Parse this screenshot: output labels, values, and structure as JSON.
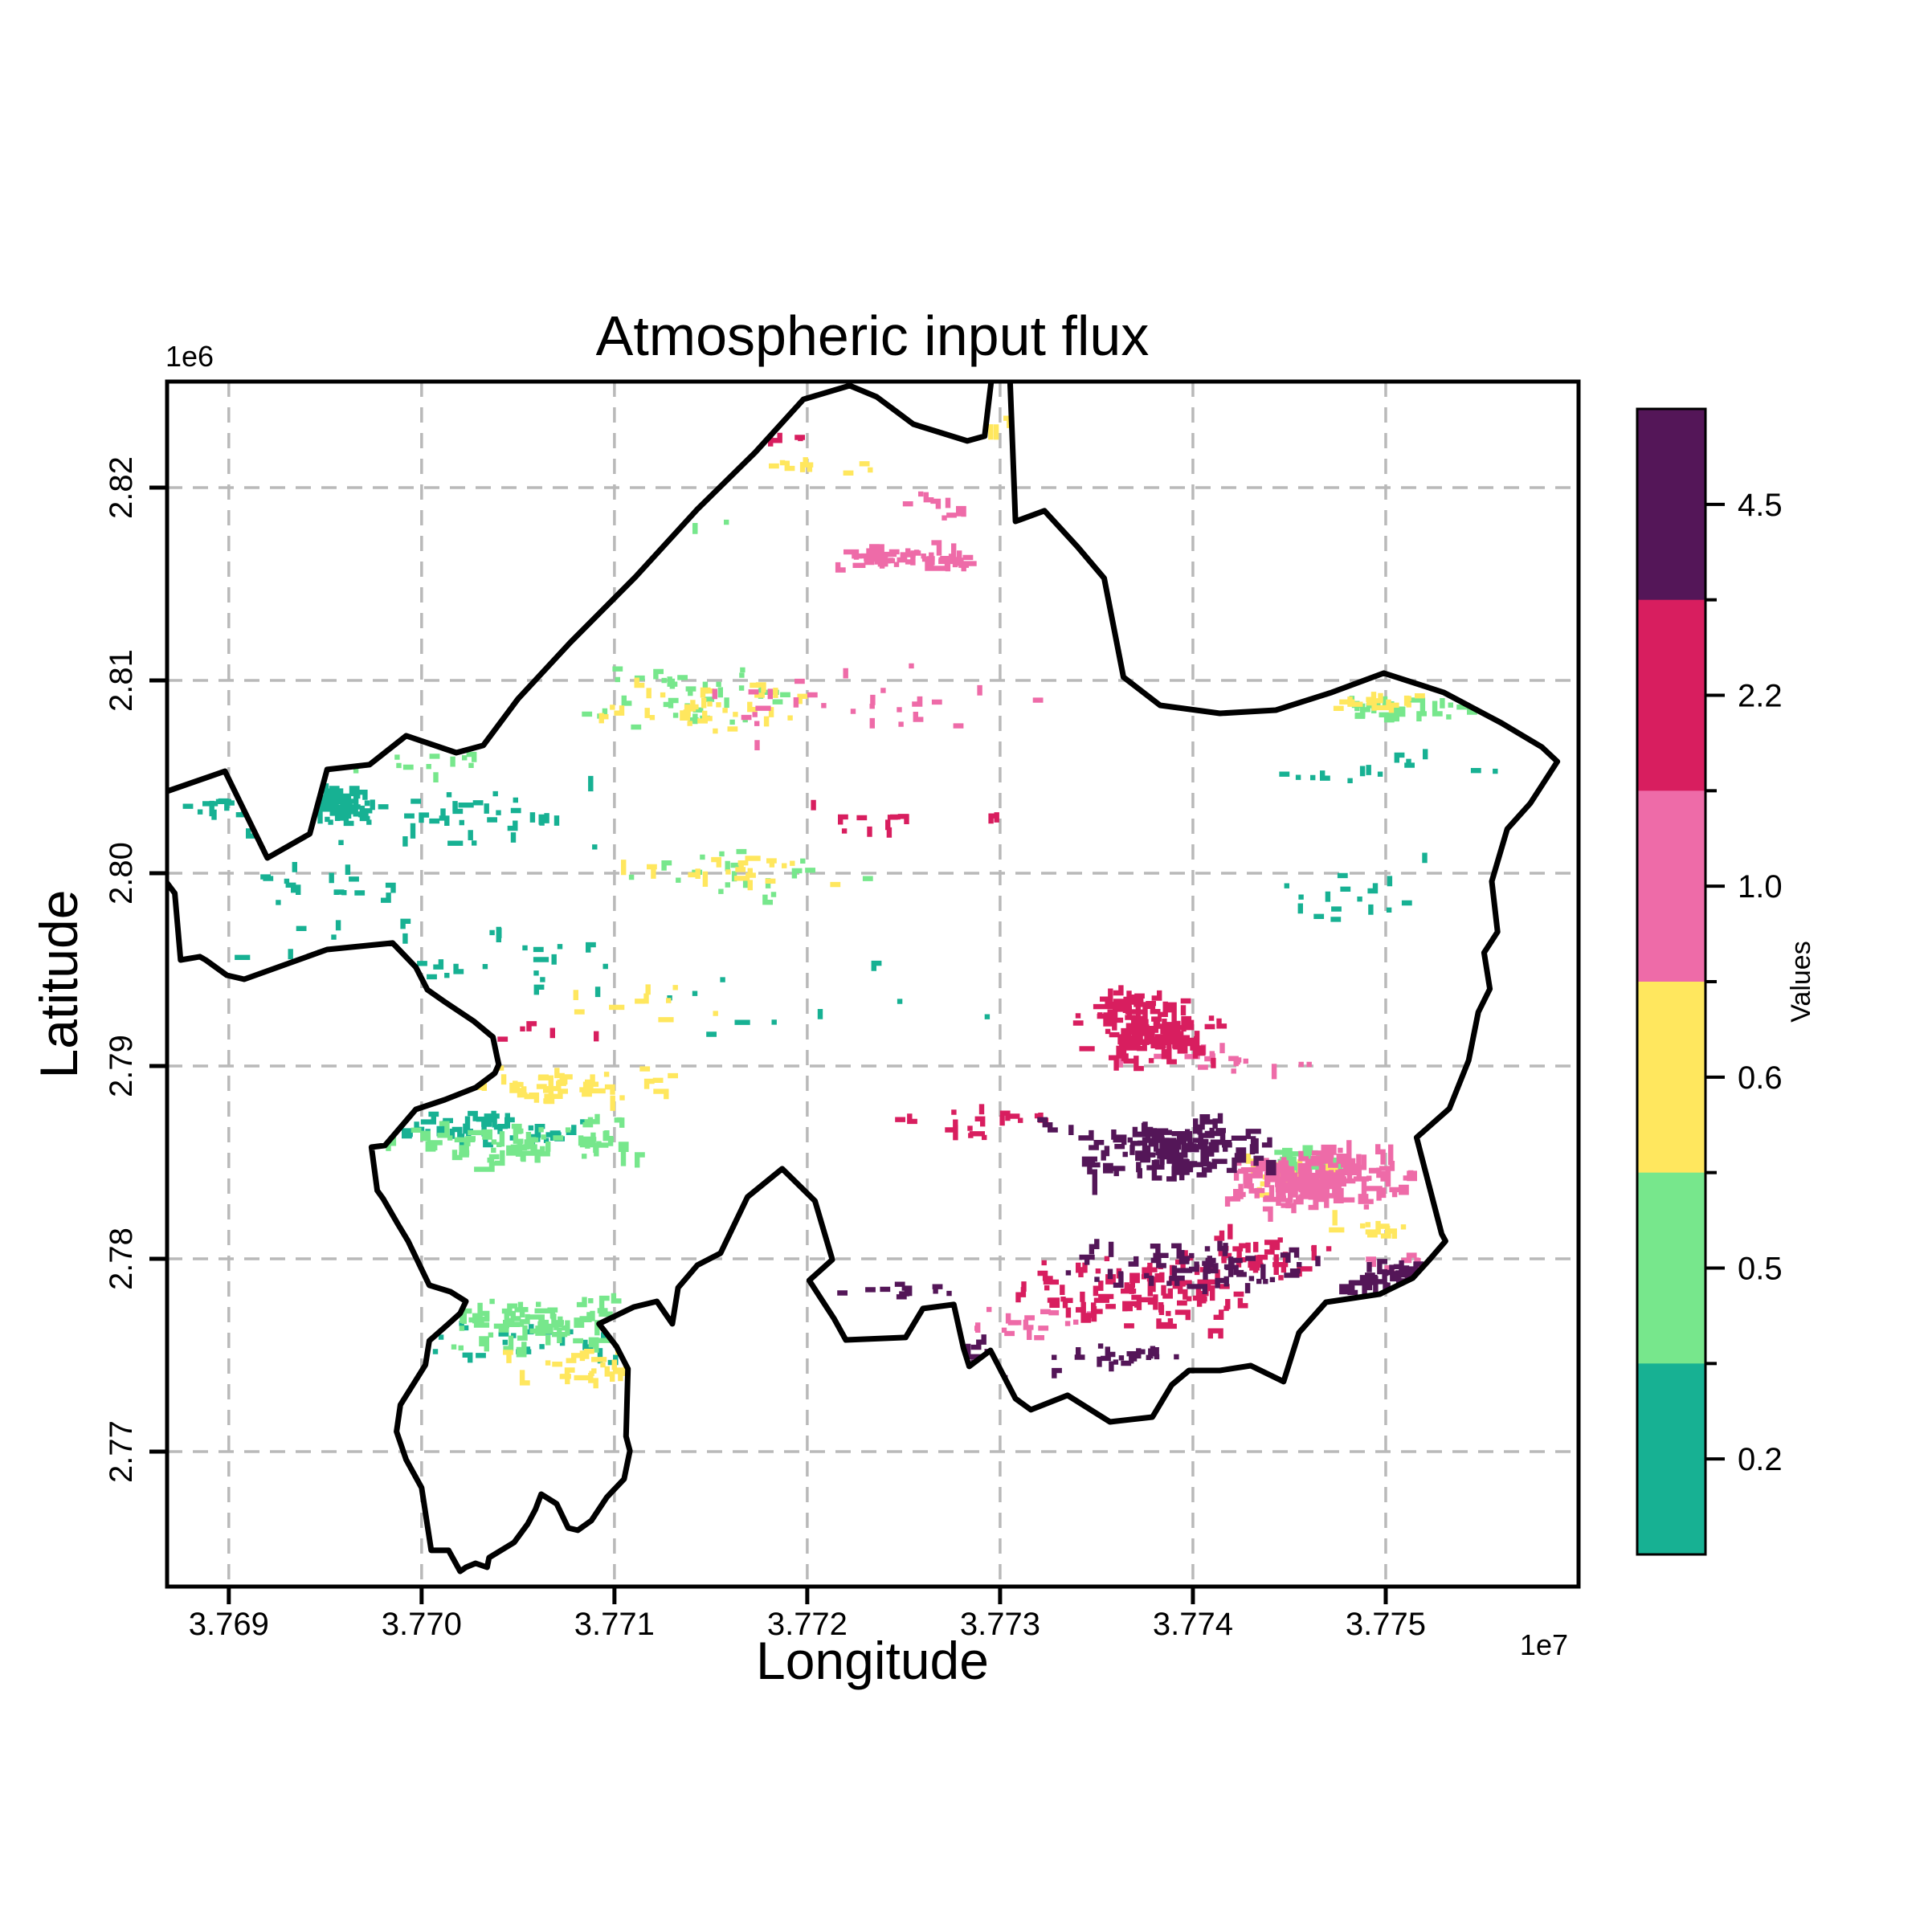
{
  "title": "Atmospheric input flux",
  "axes": {
    "xlabel": "Longitude",
    "ylabel": "Latitude",
    "x_offset_text": "1e7",
    "y_offset_text": "1e6",
    "x_tick_labels": [
      "3.769",
      "3.770",
      "3.771",
      "3.772",
      "3.773",
      "3.774",
      "3.775"
    ],
    "x_tick_values": [
      3.769,
      3.77,
      3.771,
      3.772,
      3.773,
      3.774,
      3.775
    ],
    "y_tick_labels": [
      "2.82",
      "2.81",
      "2.80",
      "2.79",
      "2.78",
      "2.77"
    ],
    "y_tick_values": [
      2.82,
      2.81,
      2.8,
      2.79,
      2.78,
      2.77
    ]
  },
  "colorbar": {
    "label": "Values",
    "segments_top_to_bottom": [
      {
        "label": "4.5",
        "color": "#541658"
      },
      {
        "label": "2.2",
        "color": "#d81e5f"
      },
      {
        "label": "1.0",
        "color": "#ee6ba8"
      },
      {
        "label": "0.6",
        "color": "#ffe75e"
      },
      {
        "label": "0.5",
        "color": "#77e78c"
      },
      {
        "label": "0.2",
        "color": "#17b193"
      }
    ]
  },
  "chart_data": {
    "type": "heatmap",
    "subtype": "categorical-raster-catchment-map",
    "title": "Atmospheric input flux",
    "xlabel": "Longitude",
    "ylabel": "Latitude",
    "x_range": [
      3.76868,
      3.776
    ],
    "y_range": [
      2.763,
      2.8255
    ],
    "x_scale_factor": "1e7",
    "y_scale_factor": "1e6",
    "grid": true,
    "legend_position": "right-colorbar",
    "value_classes_low_to_high": [
      {
        "value": "0.2",
        "color": "#17b193"
      },
      {
        "value": "0.5",
        "color": "#77e78c"
      },
      {
        "value": "0.6",
        "color": "#ffe75e"
      },
      {
        "value": "1.0",
        "color": "#ee6ba8"
      },
      {
        "value": "2.2",
        "color": "#d81e5f"
      },
      {
        "value": "4.5",
        "color": "#541658"
      }
    ],
    "boundary_polygon": [
      [
        3.76862,
        2.80404
      ],
      [
        3.76898,
        2.80529
      ],
      [
        3.7692,
        2.80079
      ],
      [
        3.76942,
        2.80204
      ],
      [
        3.76951,
        2.80538
      ],
      [
        3.76973,
        2.80563
      ],
      [
        3.76992,
        2.80713
      ],
      [
        3.77018,
        2.80625
      ],
      [
        3.77032,
        2.80663
      ],
      [
        3.7705,
        2.80904
      ],
      [
        3.77077,
        2.81196
      ],
      [
        3.77111,
        2.81538
      ],
      [
        3.77143,
        2.81888
      ],
      [
        3.77173,
        2.82183
      ],
      [
        3.77198,
        2.82458
      ],
      [
        3.77222,
        2.82529
      ],
      [
        3.77236,
        2.82471
      ],
      [
        3.77255,
        2.82329
      ],
      [
        3.77283,
        2.82242
      ],
      [
        3.77292,
        2.82267
      ],
      [
        3.77296,
        2.826
      ],
      [
        3.77305,
        2.826
      ],
      [
        3.77308,
        2.81825
      ],
      [
        3.77323,
        2.8188
      ],
      [
        3.7734,
        2.81695
      ],
      [
        3.77354,
        2.8153
      ],
      [
        3.77364,
        2.81017
      ],
      [
        3.77383,
        2.80871
      ],
      [
        3.77414,
        2.80829
      ],
      [
        3.77443,
        2.80846
      ],
      [
        3.77472,
        2.80938
      ],
      [
        3.77499,
        2.81038
      ],
      [
        3.7753,
        2.80938
      ],
      [
        3.7756,
        2.80779
      ],
      [
        3.77581,
        2.80654
      ],
      [
        3.77589,
        2.80579
      ],
      [
        3.77575,
        2.80363
      ],
      [
        3.77563,
        2.80229
      ],
      [
        3.77555,
        2.79958
      ],
      [
        3.77558,
        2.79696
      ],
      [
        3.77551,
        2.79588
      ],
      [
        3.77554,
        2.794
      ],
      [
        3.77548,
        2.79279
      ],
      [
        3.77543,
        2.79029
      ],
      [
        3.77533,
        2.78779
      ],
      [
        3.77516,
        2.78629
      ],
      [
        3.77529,
        2.78129
      ],
      [
        3.77531,
        2.78092
      ],
      [
        3.77522,
        2.77988
      ],
      [
        3.77514,
        2.779
      ],
      [
        3.77497,
        2.77817
      ],
      [
        3.77469,
        2.77775
      ],
      [
        3.77455,
        2.77617
      ],
      [
        3.77447,
        2.77363
      ],
      [
        3.7743,
        2.77446
      ],
      [
        3.77414,
        2.77421
      ],
      [
        3.77398,
        2.77421
      ],
      [
        3.77389,
        2.77346
      ],
      [
        3.77379,
        2.77179
      ],
      [
        3.77357,
        2.77154
      ],
      [
        3.77335,
        2.77292
      ],
      [
        3.77316,
        2.77217
      ],
      [
        3.77308,
        2.77275
      ],
      [
        3.77295,
        2.77525
      ],
      [
        3.77284,
        2.77442
      ],
      [
        3.77281,
        2.77538
      ],
      [
        3.77276,
        2.77763
      ],
      [
        3.7726,
        2.77742
      ],
      [
        3.77251,
        2.77592
      ],
      [
        3.7722,
        2.77579
      ],
      [
        3.77214,
        2.77688
      ],
      [
        3.77201,
        2.77888
      ],
      [
        3.77213,
        2.77996
      ],
      [
        3.77204,
        2.783
      ],
      [
        3.77187,
        2.78467
      ],
      [
        3.77169,
        2.78321
      ],
      [
        3.77155,
        2.78029
      ],
      [
        3.77143,
        2.77967
      ],
      [
        3.77133,
        2.7785
      ],
      [
        3.7713,
        2.77663
      ],
      [
        3.77122,
        2.77779
      ],
      [
        3.7711,
        2.7775
      ],
      [
        3.77092,
        2.77663
      ],
      [
        3.77101,
        2.77546
      ],
      [
        3.77107,
        2.77429
      ],
      [
        3.77106,
        2.77079
      ],
      [
        3.77108,
        2.77004
      ],
      [
        3.77105,
        2.76858
      ],
      [
        3.77096,
        2.76763
      ],
      [
        3.77088,
        2.76642
      ],
      [
        3.77081,
        2.76592
      ],
      [
        3.77076,
        2.76604
      ],
      [
        3.7707,
        2.76729
      ],
      [
        3.77062,
        2.76779
      ],
      [
        3.77059,
        2.767
      ],
      [
        3.77055,
        2.76625
      ],
      [
        3.77048,
        2.76529
      ],
      [
        3.77035,
        2.7645
      ],
      [
        3.77034,
        2.764
      ],
      [
        3.77028,
        2.76421
      ],
      [
        3.77023,
        2.764
      ],
      [
        3.7702,
        2.76379
      ],
      [
        3.77014,
        2.76488
      ],
      [
        3.77005,
        2.76488
      ],
      [
        3.77,
        2.76813
      ],
      [
        3.76992,
        2.76958
      ],
      [
        3.76987,
        2.77104
      ],
      [
        3.76989,
        2.77242
      ],
      [
        3.77002,
        2.7745
      ],
      [
        3.77004,
        2.77575
      ],
      [
        3.77014,
        2.77663
      ],
      [
        3.7702,
        2.77717
      ],
      [
        3.77023,
        2.77779
      ],
      [
        3.77015,
        2.77829
      ],
      [
        3.77004,
        2.77863
      ],
      [
        3.76993,
        2.78092
      ],
      [
        3.76988,
        2.78175
      ],
      [
        3.7698,
        2.78313
      ],
      [
        3.76977,
        2.78354
      ],
      [
        3.76974,
        2.78579
      ],
      [
        3.76981,
        2.78588
      ],
      [
        3.76997,
        2.78775
      ],
      [
        3.77012,
        2.78825
      ],
      [
        3.77028,
        2.78888
      ],
      [
        3.77038,
        2.78963
      ],
      [
        3.7704,
        2.79008
      ],
      [
        3.77039,
        2.79054
      ],
      [
        3.77037,
        2.7915
      ],
      [
        3.77027,
        2.79233
      ],
      [
        3.77012,
        2.79333
      ],
      [
        3.77003,
        2.79396
      ],
      [
        3.76997,
        2.79513
      ],
      [
        3.76985,
        2.79638
      ],
      [
        3.76951,
        2.79604
      ],
      [
        3.76908,
        2.7945
      ],
      [
        3.76899,
        2.79471
      ],
      [
        3.76888,
        2.7955
      ],
      [
        3.76885,
        2.79567
      ],
      [
        3.76875,
        2.7955
      ],
      [
        3.76872,
        2.79896
      ],
      [
        3.76862,
        2.80029
      ]
    ],
    "raster_clusters": [
      [
        "teal",
        3.76958,
        2.8036,
        0.00022,
        0.001,
        60,
        2
      ],
      [
        "teal",
        3.77015,
        2.803,
        0.0011,
        0.0016,
        40,
        1
      ],
      [
        "teal",
        3.7689,
        2.8037,
        0.00025,
        0.0007,
        12,
        1
      ],
      [
        "teal",
        3.77,
        2.7955,
        0.0011,
        0.002,
        40,
        1
      ],
      [
        "teal",
        3.7704,
        2.7868,
        0.0006,
        0.001,
        38,
        2
      ],
      [
        "teal",
        3.77058,
        2.7758,
        0.0008,
        0.0013,
        28,
        1
      ],
      [
        "teal",
        3.77475,
        2.7985,
        0.0006,
        0.0028,
        16,
        1
      ],
      [
        "teal",
        3.775,
        2.8058,
        0.0007,
        0.0012,
        14,
        1
      ],
      [
        "teal",
        3.772,
        2.7935,
        0.0013,
        0.0025,
        10,
        1
      ],
      [
        "teal",
        3.7694,
        2.7995,
        0.0006,
        0.001,
        16,
        1
      ],
      [
        "green",
        3.77055,
        2.7862,
        0.0008,
        0.0013,
        65,
        2
      ],
      [
        "green",
        3.77065,
        2.7768,
        0.0009,
        0.0015,
        75,
        2
      ],
      [
        "green",
        3.77135,
        2.8092,
        0.0007,
        0.0017,
        38,
        1
      ],
      [
        "green",
        3.7716,
        2.8,
        0.0008,
        0.0014,
        20,
        1
      ],
      [
        "green",
        3.77505,
        2.8086,
        0.0004,
        0.0006,
        22,
        2
      ],
      [
        "green",
        3.7746,
        2.78525,
        0.00022,
        0.00045,
        20,
        3
      ],
      [
        "green",
        3.7712,
        2.818,
        0.0004,
        0.0008,
        13,
        1
      ],
      [
        "green",
        3.76995,
        2.8058,
        0.0005,
        0.0007,
        13,
        1
      ],
      [
        "yellow",
        3.7706,
        2.789,
        0.0008,
        0.0012,
        42,
        2
      ],
      [
        "yellow",
        3.77085,
        2.7747,
        0.0005,
        0.0009,
        32,
        2
      ],
      [
        "yellow",
        3.77145,
        2.8086,
        0.0007,
        0.0016,
        36,
        1
      ],
      [
        "yellow",
        3.77165,
        2.8,
        0.0007,
        0.0013,
        22,
        1
      ],
      [
        "yellow",
        3.77497,
        2.8089,
        0.0003,
        0.0007,
        14,
        2
      ],
      [
        "yellow",
        3.77297,
        2.8235,
        0.0002,
        0.0011,
        10,
        1
      ],
      [
        "yellow",
        3.77452,
        2.7843,
        0.0003,
        0.0007,
        24,
        2
      ],
      [
        "yellow",
        3.7712,
        2.7935,
        0.0006,
        0.0012,
        10,
        1
      ],
      [
        "yellow",
        3.77215,
        2.8212,
        0.0004,
        0.0006,
        9,
        1
      ],
      [
        "yellow",
        3.77492,
        2.7815,
        0.0003,
        0.0008,
        12,
        1
      ],
      [
        "pink",
        3.7725,
        2.8165,
        0.00045,
        0.0006,
        48,
        2
      ],
      [
        "pink",
        3.7723,
        2.809,
        0.001,
        0.0022,
        28,
        1
      ],
      [
        "pink",
        3.77464,
        2.7843,
        0.0005,
        0.0017,
        140,
        3
      ],
      [
        "pink",
        3.7742,
        2.7905,
        0.0006,
        0.0008,
        16,
        1
      ],
      [
        "pink",
        3.77545,
        2.8197,
        0.0003,
        0.0007,
        9,
        1
      ],
      [
        "pink",
        3.7727,
        2.8193,
        0.0003,
        0.0008,
        9,
        1
      ],
      [
        "pink",
        3.7731,
        2.7768,
        0.0004,
        0.001,
        18,
        1
      ],
      [
        "pink",
        3.7752,
        2.7795,
        0.0003,
        0.0009,
        18,
        2
      ],
      [
        "crimson",
        3.77373,
        2.7922,
        0.00045,
        0.0022,
        100,
        3
      ],
      [
        "crimson",
        3.7737,
        2.7782,
        0.0007,
        0.0022,
        85,
        2
      ],
      [
        "crimson",
        3.77245,
        2.803,
        0.0007,
        0.0014,
        13,
        1
      ],
      [
        "crimson",
        3.7729,
        2.7872,
        0.0005,
        0.0013,
        18,
        1
      ],
      [
        "crimson",
        3.77436,
        2.7803,
        0.0004,
        0.0013,
        28,
        2
      ],
      [
        "crimson",
        3.77178,
        2.8228,
        0.0003,
        0.0005,
        7,
        1
      ],
      [
        "crimson",
        3.7706,
        2.792,
        0.0004,
        0.0006,
        5,
        1
      ],
      [
        "purple",
        3.77385,
        2.7858,
        0.0006,
        0.0016,
        100,
        3
      ],
      [
        "purple",
        3.774,
        2.7798,
        0.0007,
        0.0012,
        55,
        2
      ],
      [
        "purple",
        3.7728,
        2.7745,
        0.00025,
        0.0012,
        35,
        2
      ],
      [
        "purple",
        3.77505,
        2.7792,
        0.0004,
        0.001,
        40,
        2
      ],
      [
        "purple",
        3.77355,
        2.775,
        0.0004,
        0.0008,
        22,
        1
      ],
      [
        "purple",
        3.77245,
        2.7785,
        0.0003,
        0.0006,
        10,
        1
      ]
    ],
    "palette": {
      "teal": "#17b193",
      "green": "#77e78c",
      "yellow": "#ffe75e",
      "pink": "#ee6ba8",
      "crimson": "#d81e5f",
      "purple": "#541658"
    },
    "boundary_stroke": "#000000",
    "grid_color": "#b9b9b9"
  }
}
